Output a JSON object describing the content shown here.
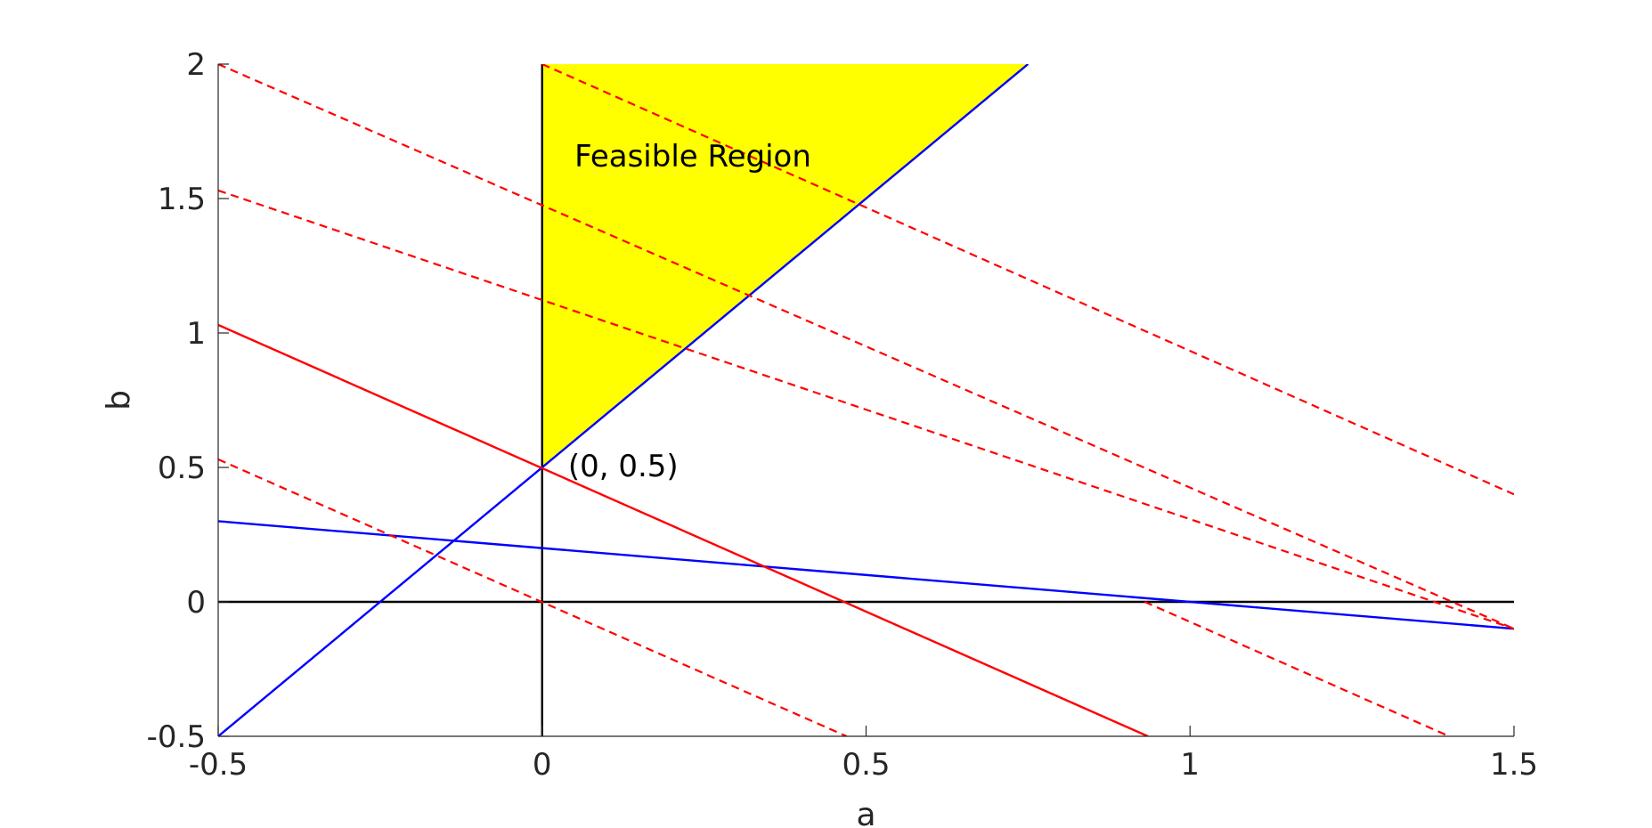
{
  "chart_data": {
    "type": "line",
    "xlabel": "a",
    "ylabel": "b",
    "xlim": [
      -0.5,
      1.5
    ],
    "ylim": [
      -0.5,
      2
    ],
    "xticks": [
      -0.5,
      0,
      0.5,
      1,
      1.5
    ],
    "yticks": [
      -0.5,
      0,
      0.5,
      1,
      1.5,
      2
    ],
    "xtick_labels": [
      "-0.5",
      "0",
      "0.5",
      "1",
      "1.5"
    ],
    "ytick_labels": [
      "-0.5",
      "0",
      "0.5",
      "1",
      "1.5",
      "2"
    ],
    "grid": false,
    "feasible_region": {
      "label": "Feasible Region",
      "color": "#ffff00",
      "vertices": [
        [
          0,
          0.5
        ],
        [
          0,
          2
        ],
        [
          0.75,
          2
        ]
      ]
    },
    "annotations": [
      {
        "text": "(0, 0.5)",
        "x": 0.04,
        "y": 0.5
      }
    ],
    "series": [
      {
        "style": "solid",
        "color": "#000000",
        "x": [
          -0.5,
          1.5
        ],
        "y": [
          0,
          0
        ]
      },
      {
        "style": "solid",
        "color": "#000000",
        "x": [
          0,
          0
        ],
        "y": [
          -0.5,
          2
        ]
      },
      {
        "style": "solid",
        "color": "#0000ff",
        "x": [
          -0.5,
          0.75
        ],
        "y": [
          -0.5,
          2
        ]
      },
      {
        "style": "solid",
        "color": "#0000ff",
        "x": [
          -0.5,
          1.5
        ],
        "y": [
          0.3,
          -0.1
        ]
      },
      {
        "style": "solid",
        "color": "#ff0000",
        "x": [
          -0.5,
          0.935
        ],
        "y": [
          1.03,
          -0.5
        ]
      },
      {
        "style": "dashed",
        "color": "#ff0000",
        "x": [
          -0.5,
          0.47
        ],
        "y": [
          0.53,
          -0.5
        ]
      },
      {
        "style": "dashed",
        "color": "#ff0000",
        "x": [
          -0.5,
          1.5
        ],
        "y": [
          1.53,
          -0.1
        ]
      },
      {
        "style": "dashed",
        "color": "#ff0000",
        "x": [
          -0.5,
          1.5
        ],
        "y": [
          2.0,
          -0.1
        ]
      },
      {
        "style": "dashed",
        "color": "#ff0000",
        "x": [
          0,
          1.5
        ],
        "y": [
          2.0,
          0.4
        ]
      },
      {
        "style": "dashed",
        "color": "#ff0000",
        "x": [
          0.93,
          1.4
        ],
        "y": [
          0.0,
          -0.5
        ]
      }
    ]
  }
}
